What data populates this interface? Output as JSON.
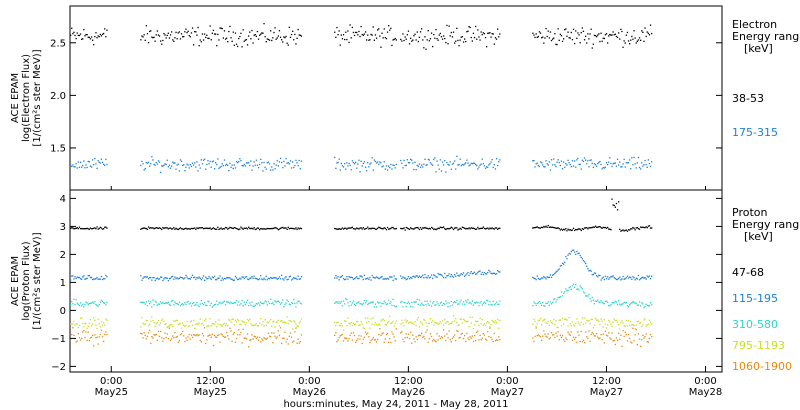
{
  "chart_data": {
    "type": "scatter",
    "xlabel": "hours:minutes, May 24, 2011 - May 28, 2011",
    "x_range": [
      "2011-05-24 19:00",
      "2011-05-28 02:00"
    ],
    "x_ticks": [
      {
        "t": "2011-05-25 00:00",
        "l1": "0:00",
        "l2": "May25"
      },
      {
        "t": "2011-05-25 12:00",
        "l1": "12:00",
        "l2": "May25"
      },
      {
        "t": "2011-05-26 00:00",
        "l1": "0:00",
        "l2": "May26"
      },
      {
        "t": "2011-05-26 12:00",
        "l1": "12:00",
        "l2": "May26"
      },
      {
        "t": "2011-05-27 00:00",
        "l1": "0:00",
        "l2": "May27"
      },
      {
        "t": "2011-05-27 12:00",
        "l1": "12:00",
        "l2": "May27"
      },
      {
        "t": "2011-05-28 00:00",
        "l1": "0:00",
        "l2": "May28"
      }
    ],
    "data_segments": [
      [
        "2011-05-24 19:00",
        "2011-05-24 23:30"
      ],
      [
        "2011-05-25 03:30",
        "2011-05-25 23:00"
      ],
      [
        "2011-05-26 03:00",
        "2011-05-26 10:30"
      ],
      [
        "2011-05-26 11:00",
        "2011-05-26 23:00"
      ],
      [
        "2011-05-27 03:00",
        "2011-05-27 17:30"
      ]
    ],
    "panels": [
      {
        "name": "electron",
        "ylabel": [
          "ACE EPAM",
          "log(Electron Flux)",
          "[1/(cm²s ster MeV)]"
        ],
        "ylim": [
          1.1,
          2.85
        ],
        "yticks": [
          1.5,
          2.0,
          2.5
        ],
        "yticklabels": [
          "1.5",
          "2.0",
          "2.5"
        ],
        "legend_title": [
          "Electron",
          "Energy ranges",
          "[keV]"
        ],
        "series": [
          {
            "name": "38-53",
            "color": "#000000",
            "level": 2.57,
            "spread": 0.06
          },
          {
            "name": "175-315",
            "color": "#1f7fd6",
            "level": 1.35,
            "spread": 0.04
          }
        ]
      },
      {
        "name": "proton",
        "ylabel": [
          "ACE EPAM",
          "log(Proton Flux)",
          "[1/(cm²s ster MeV)]"
        ],
        "ylim": [
          -2.2,
          4.3
        ],
        "yticks": [
          -2,
          -1,
          0,
          1,
          2,
          3,
          4
        ],
        "yticklabels": [
          "−2",
          "−1",
          "0",
          "1",
          "2",
          "3",
          "4"
        ],
        "legend_title": [
          "Proton",
          "Energy ranges",
          "[keV]"
        ],
        "series": [
          {
            "name": "47-68",
            "color": "#000000",
            "level": 2.95,
            "spread": 0.03
          },
          {
            "name": "115-195",
            "color": "#1f7fd6",
            "level": 1.18,
            "spread": 0.06
          },
          {
            "name": "310-580",
            "color": "#2ad6c8",
            "level": 0.28,
            "spread": 0.08
          },
          {
            "name": "795-1193",
            "color": "#c8e020",
            "level": -0.42,
            "spread": 0.13
          },
          {
            "name": "1060-1900",
            "color": "#e88a10",
            "level": -0.92,
            "spread": 0.18
          }
        ]
      }
    ]
  }
}
